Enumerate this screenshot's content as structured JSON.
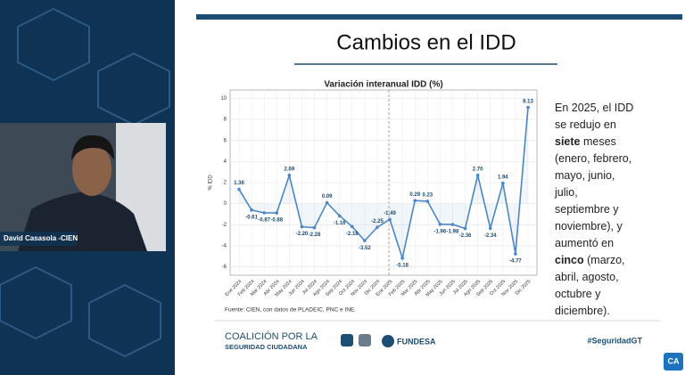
{
  "speaker": {
    "name": "David Casasola -CIEN"
  },
  "slide": {
    "title": "Cambios en el IDD",
    "source": "Fuente: CIEN, con datos de PLADEIC, PNC e INE.",
    "text_panel": {
      "lines": [
        [
          "En 2025, el IDD"
        ],
        [
          "se redujo en"
        ],
        [
          "siete",
          " meses"
        ],
        [
          "(enero, febrero,"
        ],
        [
          "mayo, junio,"
        ],
        [
          "julio,"
        ],
        [
          "septiembre y"
        ],
        [
          "noviembre), y"
        ],
        [
          "aumentó en"
        ],
        [
          "cinco",
          " (marzo,"
        ],
        [
          "abril, agosto,"
        ],
        [
          "octubre y"
        ],
        [
          "diciembre)."
        ]
      ]
    },
    "footer": {
      "coalition_line1": "COALICIÓN POR LA",
      "coalition_line2": "SEGURIDAD CIUDADANA",
      "fundesa": "FUNDESA",
      "hashtag": "#SeguridadGT"
    },
    "corner_logo": "CA"
  },
  "chart_data": {
    "type": "line",
    "title": "Variación interanual IDD (%)",
    "y_label": "% IDD",
    "categories": [
      "Ene 2024",
      "Feb 2024",
      "Mar 2024",
      "Abr 2024",
      "May 2024",
      "Jun 2024",
      "Jul 2024",
      "Ago 2024",
      "Sep 2024",
      "Oct 2024",
      "Nov 2024",
      "Dic 2024",
      "Ene 2025",
      "Feb 2025",
      "Mar 2025",
      "Abr 2025",
      "May 2025",
      "Jun 2025",
      "Jul 2025",
      "Ago 2025",
      "Sep 2025",
      "Oct 2025",
      "Nov 2025",
      "Dic 2025"
    ],
    "values": [
      1.36,
      -0.61,
      -0.87,
      -0.88,
      2.69,
      -2.2,
      -2.28,
      0.09,
      -1.16,
      -2.18,
      -3.52,
      -2.25,
      -1.49,
      -5.18,
      0.29,
      0.23,
      -1.96,
      -1.98,
      -2.36,
      2.7,
      -2.34,
      1.94,
      -4.77,
      9.13
    ],
    "value_labels": [
      "1.36",
      "-0.61",
      "-0.87",
      "-0.88",
      "2.69",
      "-2.20",
      "-2.28",
      "0.09",
      "-1.16",
      "-2.18",
      "-3.52",
      "-2.25",
      "-1.49",
      "-5.18",
      "0.29",
      "0.23",
      "-1.96",
      "-1.98",
      "-2.36",
      "2.70",
      "-2.34",
      "1.94",
      "-4.77",
      "9.13"
    ],
    "color": "#4a86c8",
    "ylim": [
      -6.8,
      10.8
    ],
    "yticks": [
      -6,
      -4,
      -2,
      0,
      2,
      4,
      6,
      8,
      10
    ],
    "grid": true
  }
}
